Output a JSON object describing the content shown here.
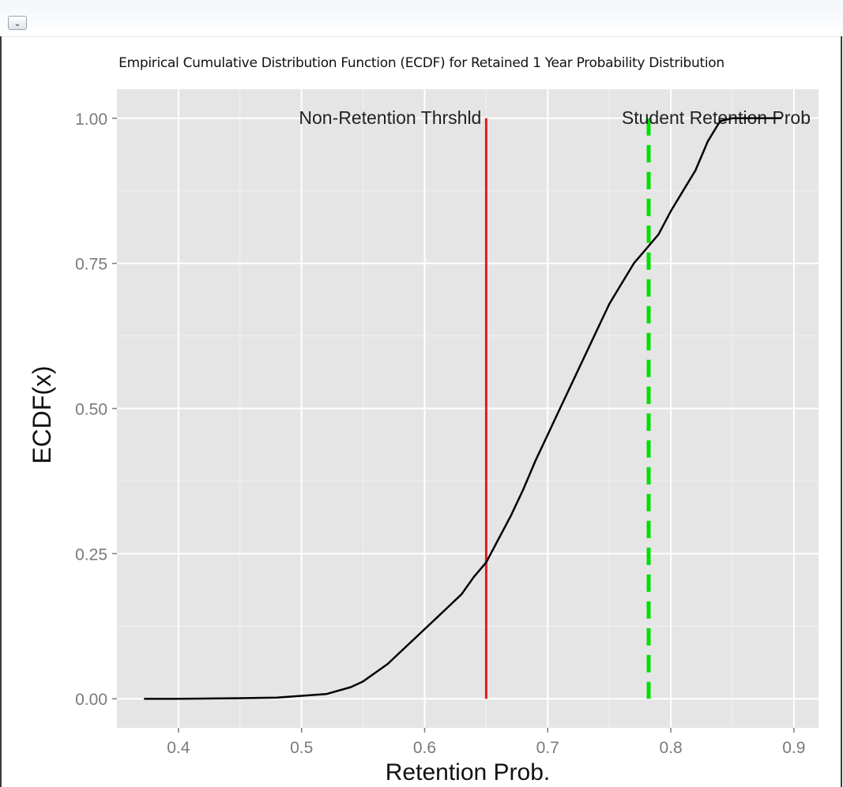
{
  "window": {
    "collapse_icon": "chevron-down-icon"
  },
  "chart_data": {
    "type": "line",
    "title": "Empirical Cumulative Distribution Function (ECDF) for Retained 1 Year Probability Distribution",
    "xlabel": "Retention Prob.",
    "ylabel": "ECDF(x)",
    "xlim": [
      0.35,
      0.92
    ],
    "ylim": [
      -0.05,
      1.05
    ],
    "xticks": [
      0.4,
      0.5,
      0.6,
      0.7,
      0.8,
      0.9
    ],
    "xtick_labels": [
      "0.4",
      "0.5",
      "0.6",
      "0.7",
      "0.8",
      "0.9"
    ],
    "yticks": [
      0.0,
      0.25,
      0.5,
      0.75,
      1.0
    ],
    "ytick_labels": [
      "0.00",
      "0.25",
      "0.50",
      "0.75",
      "1.00"
    ],
    "grid": true,
    "background": "#e5e5e5",
    "series": [
      {
        "color": "#000000",
        "points": [
          [
            0.372,
            0.0
          ],
          [
            0.4,
            0.0
          ],
          [
            0.45,
            0.001
          ],
          [
            0.48,
            0.002
          ],
          [
            0.5,
            0.005
          ],
          [
            0.52,
            0.008
          ],
          [
            0.54,
            0.02
          ],
          [
            0.55,
            0.03
          ],
          [
            0.56,
            0.045
          ],
          [
            0.57,
            0.06
          ],
          [
            0.58,
            0.08
          ],
          [
            0.59,
            0.1
          ],
          [
            0.6,
            0.12
          ],
          [
            0.61,
            0.14
          ],
          [
            0.62,
            0.16
          ],
          [
            0.63,
            0.18
          ],
          [
            0.64,
            0.21
          ],
          [
            0.65,
            0.235
          ],
          [
            0.66,
            0.275
          ],
          [
            0.67,
            0.315
          ],
          [
            0.68,
            0.36
          ],
          [
            0.69,
            0.41
          ],
          [
            0.7,
            0.455
          ],
          [
            0.71,
            0.5
          ],
          [
            0.72,
            0.545
          ],
          [
            0.73,
            0.59
          ],
          [
            0.74,
            0.635
          ],
          [
            0.75,
            0.68
          ],
          [
            0.76,
            0.715
          ],
          [
            0.77,
            0.75
          ],
          [
            0.78,
            0.775
          ],
          [
            0.79,
            0.8
          ],
          [
            0.8,
            0.84
          ],
          [
            0.81,
            0.875
          ],
          [
            0.82,
            0.91
          ],
          [
            0.83,
            0.96
          ],
          [
            0.84,
            0.995
          ],
          [
            0.85,
            1.0
          ],
          [
            0.89,
            1.0
          ]
        ]
      }
    ],
    "reference_lines": [
      {
        "label": "Non-Retention Thrshld",
        "x": 0.65,
        "color": "#e31a1c",
        "style": "solid"
      },
      {
        "label": "Student Retention Prob",
        "x": 0.782,
        "color": "#00e000",
        "style": "dashed"
      }
    ]
  }
}
